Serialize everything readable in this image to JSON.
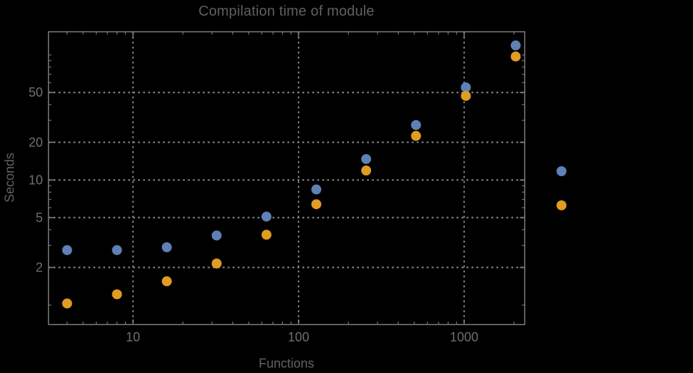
{
  "window": {
    "background": "#000000"
  },
  "chart_data": {
    "type": "scatter",
    "title": "Compilation time of module",
    "xlabel": "Functions",
    "ylabel": "Seconds",
    "xscale": "log",
    "yscale": "log",
    "xlim": [
      3.09,
      2323
    ],
    "ylim": [
      0.7,
      153
    ],
    "grid": {
      "show": true,
      "style": "dotted",
      "color": "#828282",
      "x_values": [
        10,
        100,
        1000
      ],
      "y_values": [
        2,
        5,
        10,
        20,
        50
      ]
    },
    "axes": {
      "x": {
        "major_ticks": [
          10,
          100,
          1000
        ],
        "major_labels": [
          "10",
          "100",
          "1000"
        ],
        "minor_ticks": [
          4,
          5,
          6,
          7,
          8,
          9,
          20,
          30,
          40,
          50,
          60,
          70,
          80,
          90,
          200,
          300,
          400,
          500,
          600,
          700,
          800,
          900,
          2000
        ]
      },
      "y": {
        "major_ticks": [
          2,
          5,
          10,
          20,
          50
        ],
        "major_labels": [
          "2",
          "5",
          "10",
          "20",
          "50"
        ],
        "minor_ticks": [
          1,
          3,
          4,
          6,
          7,
          8,
          9,
          30,
          40,
          60,
          70,
          80,
          90,
          100
        ]
      }
    },
    "series": [
      {
        "id": "blue",
        "marker": "disk",
        "color": "#5E81B5",
        "points": [
          [
            4,
            2.75
          ],
          [
            8,
            2.75
          ],
          [
            16,
            2.9
          ],
          [
            32,
            3.6
          ],
          [
            64,
            5.1
          ],
          [
            128,
            8.4
          ],
          [
            256,
            14.7
          ],
          [
            512,
            27.5
          ],
          [
            1024,
            55
          ],
          [
            2048,
            119
          ]
        ]
      },
      {
        "id": "orange",
        "marker": "disk",
        "color": "#E19C24",
        "points": [
          [
            4,
            1.03
          ],
          [
            8,
            1.22
          ],
          [
            16,
            1.55
          ],
          [
            32,
            2.15
          ],
          [
            64,
            3.65
          ],
          [
            128,
            6.4
          ],
          [
            256,
            11.9
          ],
          [
            512,
            22.5
          ],
          [
            1024,
            47
          ],
          [
            2048,
            97
          ]
        ]
      }
    ],
    "legend": {
      "position": "right-outside",
      "labels_visible": false,
      "entries": [
        {
          "marker_color": "#5E81B5",
          "label": ""
        },
        {
          "marker_color": "#E19C24",
          "label": ""
        }
      ]
    }
  },
  "style": {
    "frame_color": "#7d7d7d",
    "tick_color": "#7d7d7d",
    "tick_label_color": "#6f6f6f",
    "title_color": "#5e6064",
    "axis_label_color": "#606265"
  }
}
